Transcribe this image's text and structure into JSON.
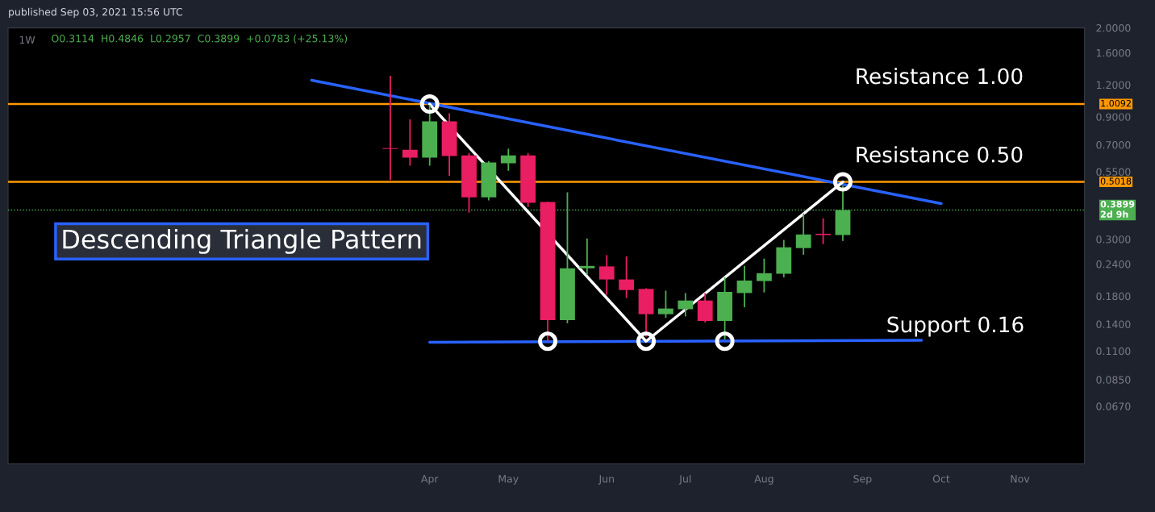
{
  "chart_data": {
    "type": "candlestick",
    "title": "1W",
    "x": [
      "2021-03-22",
      "2021-03-29",
      "2021-04-05",
      "2021-04-12",
      "2021-04-19",
      "2021-04-26",
      "2021-05-03",
      "2021-05-10",
      "2021-05-17",
      "2021-05-24",
      "2021-05-31",
      "2021-06-07",
      "2021-06-14",
      "2021-06-21",
      "2021-06-28",
      "2021-07-05",
      "2021-07-12",
      "2021-07-19",
      "2021-07-26",
      "2021-08-02",
      "2021-08-09",
      "2021-08-16",
      "2021-08-23",
      "2021-08-30"
    ],
    "ohlc": [
      [
        0.68,
        1.3,
        0.51,
        0.675
      ],
      [
        0.67,
        0.88,
        0.58,
        0.624
      ],
      [
        0.624,
        1.0,
        0.58,
        0.864
      ],
      [
        0.864,
        0.93,
        0.53,
        0.633
      ],
      [
        0.637,
        0.65,
        0.381,
        0.437
      ],
      [
        0.437,
        0.605,
        0.425,
        0.597
      ],
      [
        0.593,
        0.676,
        0.555,
        0.637
      ],
      [
        0.637,
        0.65,
        0.401,
        0.416
      ],
      [
        0.419,
        0.42,
        0.12,
        0.145
      ],
      [
        0.145,
        0.457,
        0.141,
        0.231
      ],
      [
        0.231,
        0.302,
        0.218,
        0.236
      ],
      [
        0.235,
        0.26,
        0.182,
        0.209
      ],
      [
        0.209,
        0.257,
        0.177,
        0.19
      ],
      [
        0.192,
        0.193,
        0.125,
        0.153
      ],
      [
        0.153,
        0.189,
        0.148,
        0.161
      ],
      [
        0.16,
        0.185,
        0.15,
        0.173
      ],
      [
        0.173,
        0.185,
        0.142,
        0.144
      ],
      [
        0.144,
        0.213,
        0.122,
        0.187
      ],
      [
        0.185,
        0.236,
        0.163,
        0.207
      ],
      [
        0.206,
        0.252,
        0.186,
        0.221
      ],
      [
        0.22,
        0.298,
        0.213,
        0.279
      ],
      [
        0.277,
        0.378,
        0.261,
        0.313
      ],
      [
        0.315,
        0.362,
        0.287,
        0.3114
      ],
      [
        0.3114,
        0.4846,
        0.2957,
        0.3899
      ]
    ],
    "colors": [
      "#e91e63",
      "#e91e63",
      "#4caf50",
      "#e91e63",
      "#e91e63",
      "#4caf50",
      "#4caf50",
      "#e91e63",
      "#e91e63",
      "#4caf50",
      "#4caf50",
      "#e91e63",
      "#e91e63",
      "#e91e63",
      "#4caf50",
      "#4caf50",
      "#e91e63",
      "#4caf50",
      "#4caf50",
      "#4caf50",
      "#4caf50",
      "#4caf50",
      "#e91e63",
      "#4caf50"
    ],
    "series": [
      {
        "type": "line",
        "color": "#2962ff",
        "x": [
          "2021-02-22",
          "2021-10-04"
        ],
        "values": [
          1.25,
          0.413
        ]
      },
      {
        "type": "line",
        "color": "#2962ff",
        "x": [
          "2021-04-05",
          "2021-09-27"
        ],
        "values": [
          0.119,
          0.121
        ]
      },
      {
        "type": "line",
        "color": "#ffffff",
        "marker": "circle",
        "x": [
          "2021-04-05",
          "2021-06-21",
          "2021-08-30"
        ],
        "values": [
          1.0092,
          0.12,
          0.5018
        ]
      },
      {
        "type": "scatter",
        "color": "#ffffff",
        "marker": "circle",
        "x": [
          "2021-05-17",
          "2021-07-19"
        ],
        "values": [
          0.12,
          0.12
        ]
      }
    ],
    "ref_lines": [
      {
        "axis": "y",
        "value": 1.0092,
        "label": "1.0092",
        "color": "#ff9800",
        "line_style": "solid"
      },
      {
        "axis": "y",
        "value": 0.5018,
        "label": "0.5018",
        "color": "#ff9800",
        "line_style": "solid"
      },
      {
        "axis": "y",
        "value": 0.3899,
        "label": "0.3899\n2d 9h",
        "color": "#4caf50",
        "line_style": "dotted"
      }
    ],
    "annotations": [
      "published Sep 03, 2021 15:56 UTC",
      "O0.3114  H0.4846  L0.2957  C0.3899  +0.0783 (+25.13%)",
      "Resistance 1.00",
      "Resistance 0.50",
      "Support 0.16",
      "Descending Triangle Pattern"
    ],
    "log": true,
    "xlim": [
      "2020-11-06",
      "2021-11-24"
    ],
    "xticks": [
      {
        "value": "2021-04-05",
        "label": "Apr"
      },
      {
        "value": "2021-05-03",
        "label": "May"
      },
      {
        "value": "2021-06-07",
        "label": "Jun"
      },
      {
        "value": "2021-07-05",
        "label": "Jul"
      },
      {
        "value": "2021-08-02",
        "label": "Aug"
      },
      {
        "value": "2021-09-06",
        "label": "Sep"
      },
      {
        "value": "2021-10-04",
        "label": "Oct"
      },
      {
        "value": "2021-11-01",
        "label": "Nov"
      }
    ],
    "ylim": [
      0.04,
      2.0
    ],
    "yticks": [
      {
        "value": 0.067,
        "label": "0.0670"
      },
      {
        "value": 0.085,
        "label": "0.0850"
      },
      {
        "value": 0.11,
        "label": "0.1100"
      },
      {
        "value": 0.14,
        "label": "0.1400"
      },
      {
        "value": 0.18,
        "label": "0.1800"
      },
      {
        "value": 0.24,
        "label": "0.2400"
      },
      {
        "value": 0.3,
        "label": "0.3000"
      },
      {
        "value": 0.55,
        "label": "0.5500"
      },
      {
        "value": 0.7,
        "label": "0.7000"
      },
      {
        "value": 0.9,
        "label": "0.9000"
      },
      {
        "value": 1.2,
        "label": "1.2000"
      },
      {
        "value": 1.6,
        "label": "1.6000"
      },
      {
        "value": 2.0,
        "label": "2.0000"
      }
    ]
  }
}
